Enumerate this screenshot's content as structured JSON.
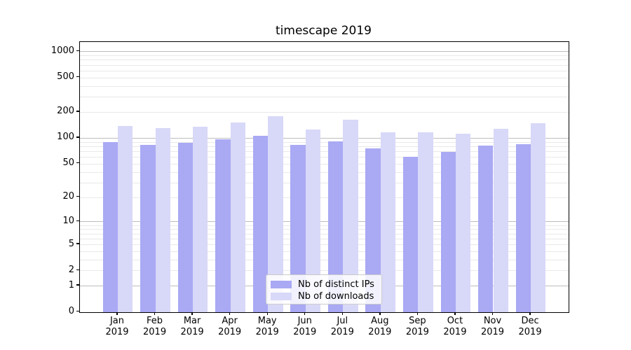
{
  "chart_data": {
    "type": "bar",
    "title": "timescape 2019",
    "categories": [
      "Jan",
      "Feb",
      "Mar",
      "Apr",
      "May",
      "Jun",
      "Jul",
      "Aug",
      "Sep",
      "Oct",
      "Nov",
      "Dec"
    ],
    "category_year": "2019",
    "series": [
      {
        "name": "Nb of distinct IPs",
        "color": "#a9a9f4",
        "values": [
          90,
          83,
          87,
          97,
          105,
          83,
          91,
          76,
          60,
          68,
          82,
          85
        ]
      },
      {
        "name": "Nb of downloads",
        "color": "#d8d8f8",
        "values": [
          138,
          130,
          136,
          150,
          178,
          126,
          162,
          116,
          117,
          111,
          127,
          148
        ]
      }
    ],
    "y_axis": {
      "scale": "log10(value+1)",
      "ticks": [
        0,
        1,
        2,
        5,
        10,
        20,
        50,
        100,
        200,
        500,
        1000
      ],
      "range": [
        0,
        1200
      ]
    },
    "grid": {
      "major_color": "#bdbdbd",
      "minor_color": "#e9e9e9",
      "major_at": [
        1,
        10,
        100,
        1000
      ]
    },
    "legend": {
      "position": "lower-center"
    }
  }
}
